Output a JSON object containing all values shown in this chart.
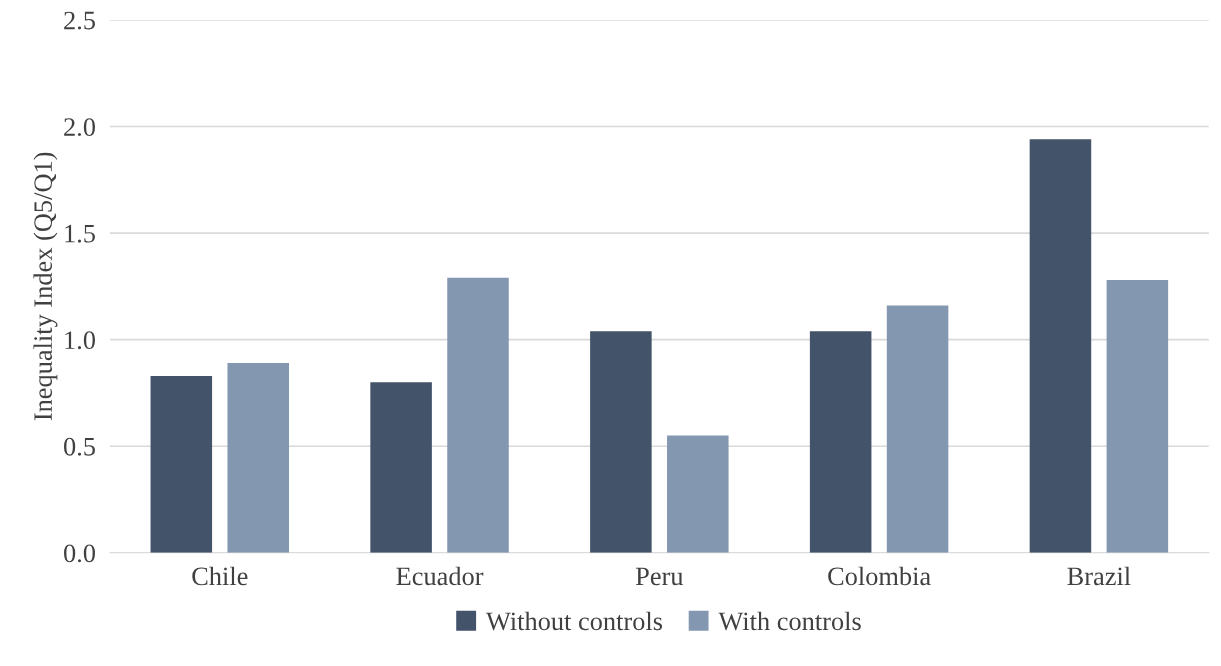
{
  "chart_data": {
    "type": "bar",
    "ylabel": "Inequality Index (Q5/Q1)",
    "categories": [
      "Chile",
      "Ecuador",
      "Peru",
      "Colombia",
      "Brazil"
    ],
    "series": [
      {
        "name": "Without controls",
        "color": "#435369",
        "values": [
          0.83,
          0.8,
          1.04,
          1.04,
          1.94
        ]
      },
      {
        "name": "With controls",
        "color": "#8497b0",
        "values": [
          0.89,
          1.29,
          0.55,
          1.16,
          1.28
        ]
      }
    ],
    "ylim": [
      0,
      2.5
    ],
    "yticks": [
      {
        "value": 0,
        "label": "0.0"
      },
      {
        "value": 0.5,
        "label": "0.5"
      },
      {
        "value": 1,
        "label": "1.0"
      },
      {
        "value": 1.5,
        "label": "1.5"
      },
      {
        "value": 2,
        "label": "2.0"
      },
      {
        "value": 2.5,
        "label": "2.5"
      }
    ],
    "grid": "y",
    "legend": "bottom"
  }
}
